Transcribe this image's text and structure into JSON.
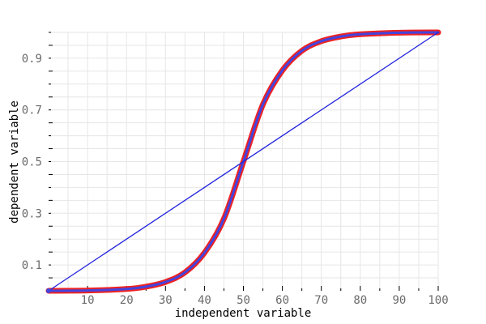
{
  "chart_data": {
    "type": "line",
    "title": "",
    "xlabel": "independent variable",
    "ylabel": "dependent variable",
    "xlim": [
      0,
      100
    ],
    "ylim": [
      0,
      1
    ],
    "x_ticks": [
      10,
      20,
      30,
      40,
      50,
      60,
      70,
      80,
      90,
      100
    ],
    "x_tick_labels": [
      "10",
      "20",
      "30",
      "40",
      "50",
      "60",
      "70",
      "80",
      "90",
      "100"
    ],
    "y_ticks": [
      0.1,
      0.3,
      0.5,
      0.7,
      0.9
    ],
    "y_tick_labels": [
      "0.1",
      "0.3",
      "0.5",
      "0.7",
      "0.9"
    ],
    "grid": true,
    "legend": "none",
    "series": [
      {
        "color": "#ee2222",
        "x": [
          0,
          10,
          20,
          25,
          30,
          35,
          40,
          45,
          50,
          55,
          60,
          65,
          70,
          75,
          80,
          90,
          100
        ],
        "y": [
          0.0,
          0.001,
          0.007,
          0.016,
          0.034,
          0.071,
          0.147,
          0.279,
          0.5,
          0.721,
          0.853,
          0.929,
          0.966,
          0.984,
          0.993,
          0.999,
          1.0
        ]
      },
      {
        "color": "#4444dd",
        "x": [
          0,
          10,
          20,
          25,
          30,
          35,
          40,
          45,
          50,
          55,
          60,
          65,
          70,
          75,
          80,
          90,
          100
        ],
        "y": [
          0.0,
          0.001,
          0.007,
          0.016,
          0.034,
          0.071,
          0.147,
          0.279,
          0.5,
          0.721,
          0.853,
          0.929,
          0.966,
          0.984,
          0.993,
          0.999,
          1.0
        ]
      },
      {
        "color": "#2222dd",
        "x": [
          0,
          100
        ],
        "y": [
          0.0,
          1.0
        ]
      }
    ]
  }
}
